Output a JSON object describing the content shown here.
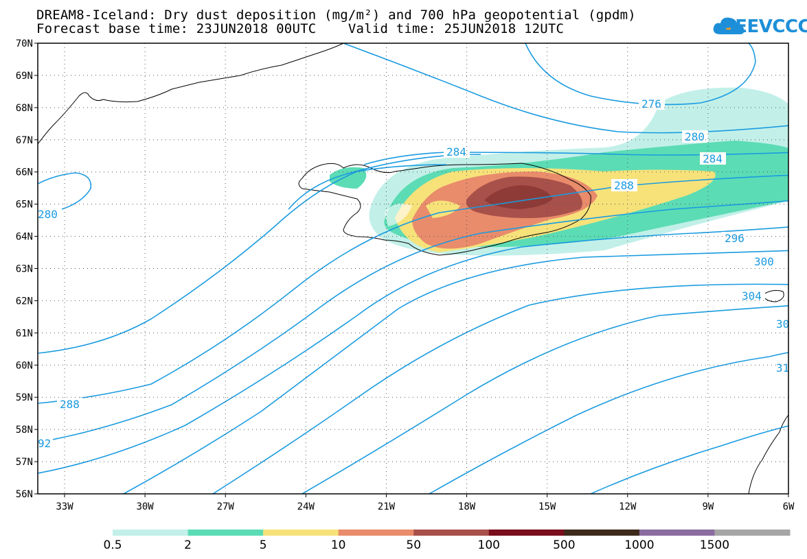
{
  "title": {
    "line1": "DREAM8-Iceland: Dry dust deposition (mg/m²) and 700 hPa geopotential (gpdm)",
    "line2": "Forecast base time: 23JUN2018 00UTC    Valid time: 25JUN2018 12UTC"
  },
  "logo": {
    "text": "SEEVCCC",
    "icon": "cloud-icon",
    "color": "#1d8fd8"
  },
  "map": {
    "lat_labels": [
      "70N",
      "69N",
      "68N",
      "67N",
      "66N",
      "65N",
      "64N",
      "63N",
      "62N",
      "61N",
      "60N",
      "59N",
      "58N",
      "57N",
      "56N"
    ],
    "lon_labels": [
      "33W",
      "30W",
      "27W",
      "24W",
      "21W",
      "18W",
      "15W",
      "12W",
      "9W",
      "6W"
    ],
    "contour_labels": [
      "276",
      "280",
      "284",
      "284",
      "288",
      "280",
      "296",
      "300",
      "304",
      "30",
      "31",
      "288",
      "92"
    ],
    "contour_color": "#1a9be0",
    "coast_color": "#000000"
  },
  "legend": {
    "thresholds": [
      "0.5",
      "2",
      "5",
      "10",
      "50",
      "100",
      "500",
      "1000",
      "1500"
    ],
    "colors": [
      "#c2f0e9",
      "#5cdcb4",
      "#f7e27a",
      "#e98c6b",
      "#a8504a",
      "#7a0e1c",
      "#3d2a1a",
      "#8c6ca0",
      "#a6a6a6"
    ]
  }
}
